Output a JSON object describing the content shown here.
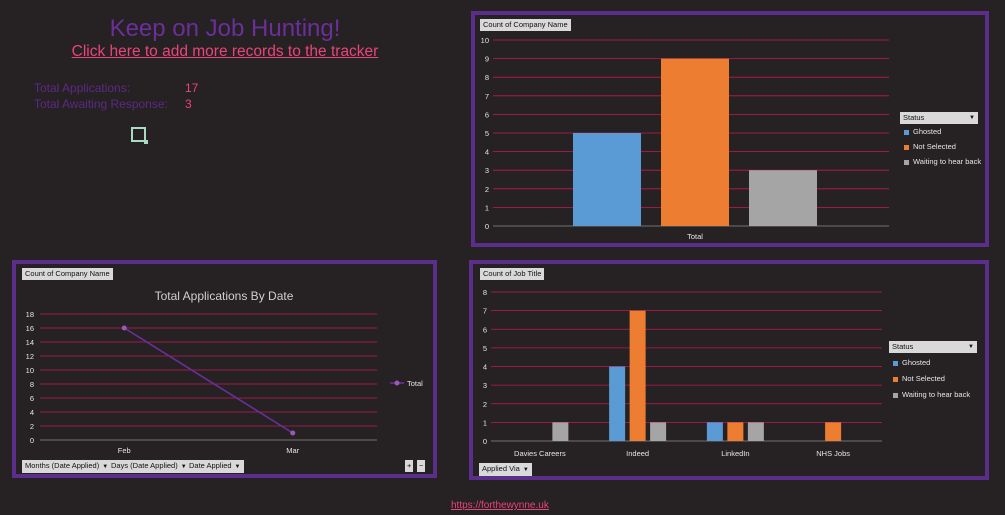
{
  "header": {
    "title": "Keep on Job Hunting!",
    "link_text": "Click here to add more records to the tracker"
  },
  "stats": {
    "total_applications_label": "Total Applications:",
    "total_applications_value": "17",
    "awaiting_label": "Total Awaiting Response:",
    "awaiting_value": "3"
  },
  "footer": {
    "url_text": "https://forthewynne.uk"
  },
  "colors": {
    "background": "#262122",
    "panel_border": "#5b2e8c",
    "gridline": "#c2185b",
    "ghosted": "#5b9bd5",
    "not_selected": "#ed7d31",
    "waiting": "#a5a5a5",
    "line": "#6a2f9a"
  },
  "panel_status": {
    "field_button": "Count of Company Name",
    "legend_title": "Status",
    "legend_items": [
      "Ghosted",
      "Not Selected",
      "Waiting to hear back"
    ]
  },
  "panel_date": {
    "field_button": "Count of Company Name",
    "filter_buttons": [
      "Months (Date Applied)",
      "Days (Date Applied)",
      "Date Applied"
    ],
    "expand_buttons": [
      "+",
      "−"
    ],
    "legend_items": [
      "Total"
    ]
  },
  "panel_via": {
    "field_button": "Count of Job Title",
    "legend_title": "Status",
    "legend_items": [
      "Ghosted",
      "Not Selected",
      "Waiting to hear back"
    ],
    "filter_button": "Applied Via"
  },
  "chart_data": [
    {
      "type": "bar",
      "categories": [
        "Total"
      ],
      "series": [
        {
          "name": "Ghosted",
          "values": [
            5
          ]
        },
        {
          "name": "Not Selected",
          "values": [
            9
          ]
        },
        {
          "name": "Waiting to hear back",
          "values": [
            3
          ]
        }
      ],
      "ylim": [
        0,
        10
      ],
      "yticks": [
        0,
        1,
        2,
        3,
        4,
        5,
        6,
        7,
        8,
        9,
        10
      ],
      "grid": true,
      "legend": "right"
    },
    {
      "type": "line",
      "title": "Total Applications By Date",
      "categories": [
        "Feb",
        "Mar"
      ],
      "series": [
        {
          "name": "Total",
          "values": [
            16,
            1
          ]
        }
      ],
      "ylim": [
        0,
        18
      ],
      "yticks": [
        0,
        2,
        4,
        6,
        8,
        10,
        12,
        14,
        16,
        18
      ],
      "grid": true,
      "legend": "right"
    },
    {
      "type": "bar",
      "categories": [
        "Davies Careers",
        "Indeed",
        "LinkedIn",
        "NHS Jobs"
      ],
      "series": [
        {
          "name": "Ghosted",
          "values": [
            0,
            4,
            1,
            0
          ]
        },
        {
          "name": "Not Selected",
          "values": [
            0,
            7,
            1,
            1
          ]
        },
        {
          "name": "Waiting to hear back",
          "values": [
            1,
            1,
            1,
            0
          ]
        }
      ],
      "ylim": [
        0,
        8
      ],
      "yticks": [
        0,
        1,
        2,
        3,
        4,
        5,
        6,
        7,
        8
      ],
      "grid": true,
      "legend": "right"
    }
  ]
}
